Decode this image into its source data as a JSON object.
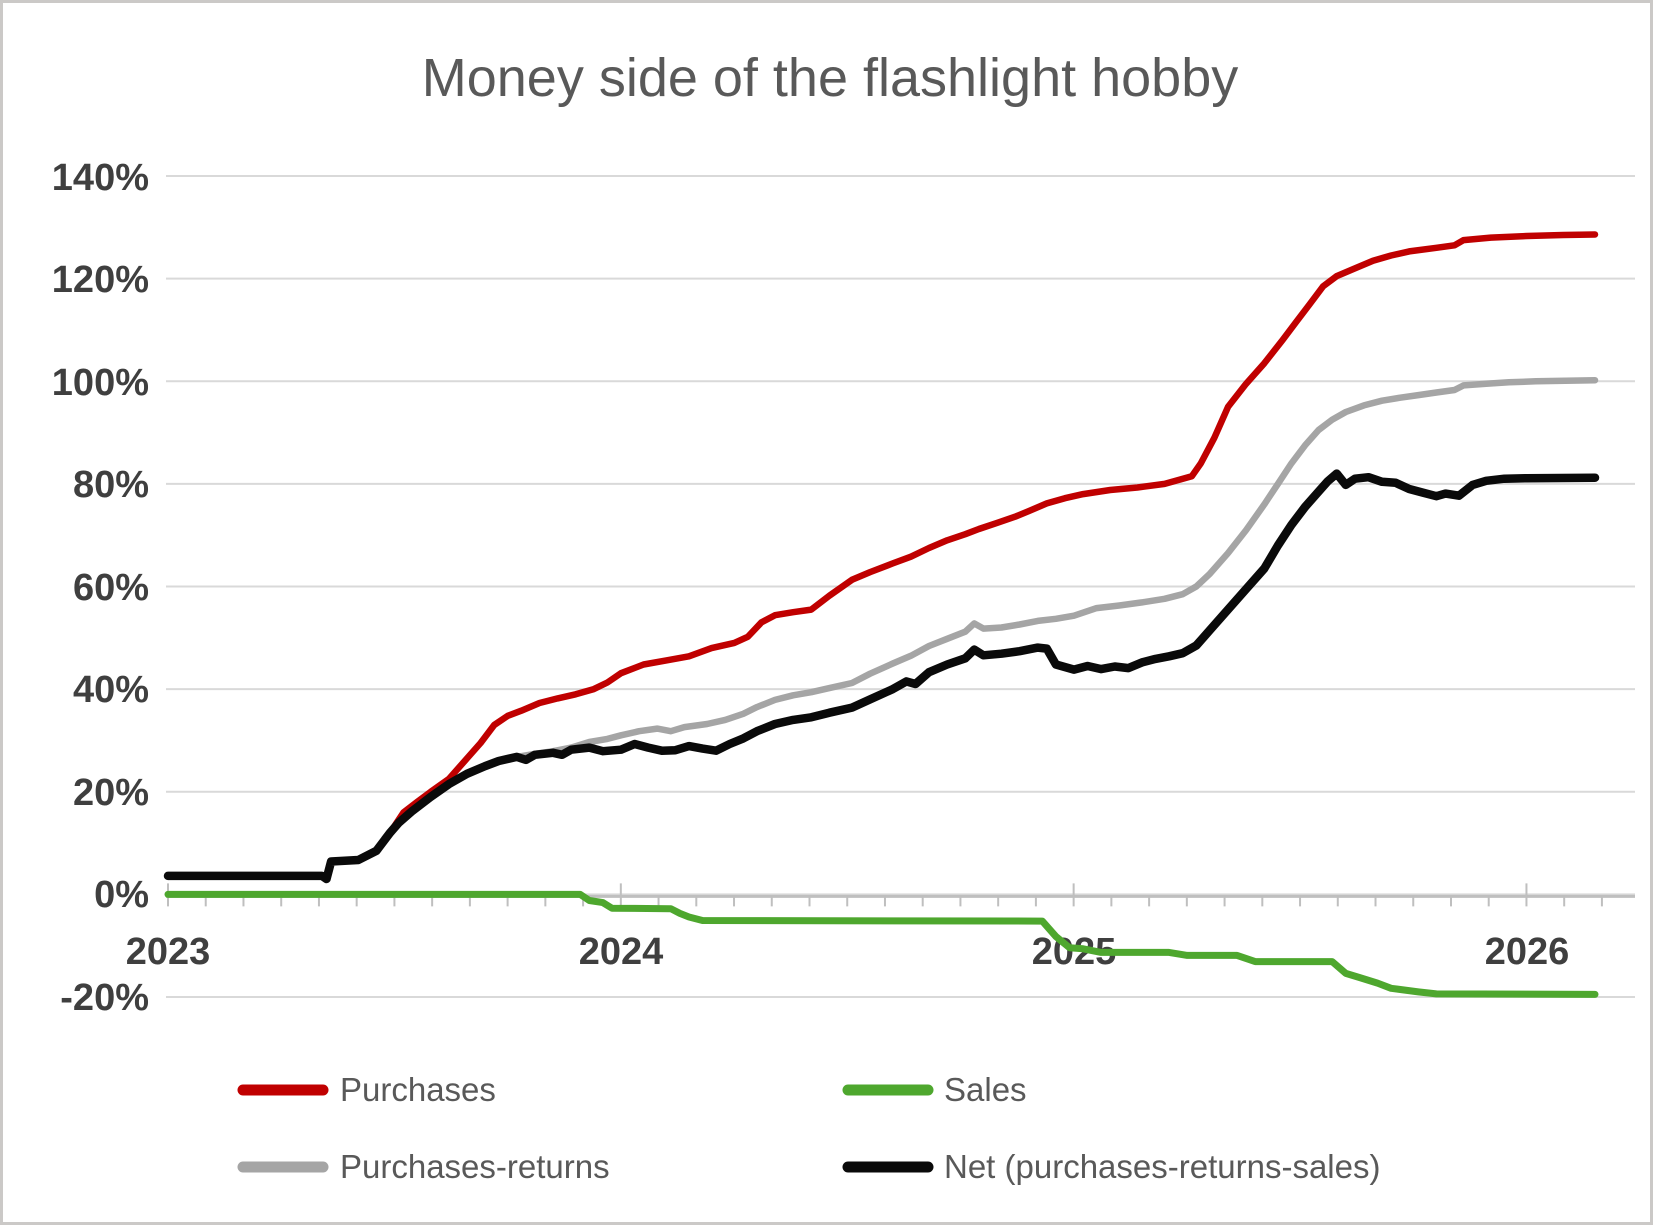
{
  "chart_data": {
    "type": "line",
    "title": "Money side of the flashlight hobby",
    "xlabel": "",
    "ylabel": "",
    "x_axis": {
      "range": [
        2023.0,
        2026.24
      ],
      "tick_labels": [
        "2023",
        "2024",
        "2025",
        "2026"
      ],
      "tick_values": [
        2023,
        2024,
        2025,
        2026
      ],
      "minor_tick_interval_years": 0.0833
    },
    "y_axis": {
      "range": [
        -20,
        140
      ],
      "format": "percent",
      "tick_values": [
        140,
        120,
        100,
        80,
        60,
        40,
        20,
        0,
        -20
      ],
      "tick_labels": [
        "140%",
        "120%",
        "100%",
        "80%",
        "60%",
        "40%",
        "20%",
        "0%",
        "-20%"
      ]
    },
    "grid": "horizontal",
    "legend_position": "bottom",
    "series": [
      {
        "name": "Purchases",
        "color": "#c00000",
        "stroke_width": 6.5,
        "points": [
          [
            2023.0,
            3.6
          ],
          [
            2023.34,
            3.6
          ],
          [
            2023.35,
            3.0
          ],
          [
            2023.36,
            6.4
          ],
          [
            2023.42,
            6.7
          ],
          [
            2023.46,
            8.5
          ],
          [
            2023.49,
            12.0
          ],
          [
            2023.52,
            16.0
          ],
          [
            2023.55,
            18.0
          ],
          [
            2023.58,
            20.0
          ],
          [
            2023.62,
            22.5
          ],
          [
            2023.66,
            26.5
          ],
          [
            2023.69,
            29.5
          ],
          [
            2023.72,
            33.0
          ],
          [
            2023.75,
            34.8
          ],
          [
            2023.78,
            35.8
          ],
          [
            2023.82,
            37.3
          ],
          [
            2023.86,
            38.2
          ],
          [
            2023.9,
            39.0
          ],
          [
            2023.94,
            40.0
          ],
          [
            2023.97,
            41.3
          ],
          [
            2024.0,
            43.1
          ],
          [
            2024.05,
            44.8
          ],
          [
            2024.1,
            45.6
          ],
          [
            2024.15,
            46.4
          ],
          [
            2024.2,
            48.0
          ],
          [
            2024.25,
            49.0
          ],
          [
            2024.28,
            50.2
          ],
          [
            2024.31,
            53.0
          ],
          [
            2024.34,
            54.4
          ],
          [
            2024.38,
            55.0
          ],
          [
            2024.42,
            55.5
          ],
          [
            2024.46,
            58.2
          ],
          [
            2024.51,
            61.3
          ],
          [
            2024.55,
            62.8
          ],
          [
            2024.6,
            64.5
          ],
          [
            2024.64,
            65.8
          ],
          [
            2024.68,
            67.5
          ],
          [
            2024.72,
            69.0
          ],
          [
            2024.76,
            70.2
          ],
          [
            2024.79,
            71.2
          ],
          [
            2024.83,
            72.4
          ],
          [
            2024.87,
            73.6
          ],
          [
            2024.9,
            74.7
          ],
          [
            2024.94,
            76.2
          ],
          [
            2024.98,
            77.2
          ],
          [
            2025.02,
            78.0
          ],
          [
            2025.08,
            78.8
          ],
          [
            2025.14,
            79.3
          ],
          [
            2025.2,
            80.0
          ],
          [
            2025.26,
            81.5
          ],
          [
            2025.28,
            84.0
          ],
          [
            2025.31,
            89.0
          ],
          [
            2025.34,
            95.0
          ],
          [
            2025.38,
            99.5
          ],
          [
            2025.42,
            103.5
          ],
          [
            2025.46,
            108.0
          ],
          [
            2025.49,
            111.5
          ],
          [
            2025.52,
            115.0
          ],
          [
            2025.55,
            118.5
          ],
          [
            2025.58,
            120.5
          ],
          [
            2025.62,
            122.0
          ],
          [
            2025.66,
            123.5
          ],
          [
            2025.7,
            124.5
          ],
          [
            2025.74,
            125.3
          ],
          [
            2025.8,
            126.0
          ],
          [
            2025.84,
            126.5
          ],
          [
            2025.86,
            127.5
          ],
          [
            2025.92,
            128.0
          ],
          [
            2026.0,
            128.3
          ],
          [
            2026.08,
            128.5
          ],
          [
            2026.15,
            128.6
          ]
        ]
      },
      {
        "name": "Sales",
        "color": "#4ea72e",
        "stroke_width": 7,
        "points": [
          [
            2023.0,
            0
          ],
          [
            2023.91,
            0
          ],
          [
            2023.93,
            -1.2
          ],
          [
            2023.96,
            -1.6
          ],
          [
            2023.98,
            -2.7
          ],
          [
            2024.11,
            -2.8
          ],
          [
            2024.13,
            -3.7
          ],
          [
            2024.15,
            -4.4
          ],
          [
            2024.18,
            -5.1
          ],
          [
            2024.93,
            -5.2
          ],
          [
            2024.96,
            -8.2
          ],
          [
            2024.99,
            -10.4
          ],
          [
            2025.02,
            -10.6
          ],
          [
            2025.06,
            -11.3
          ],
          [
            2025.21,
            -11.3
          ],
          [
            2025.25,
            -11.9
          ],
          [
            2025.36,
            -11.9
          ],
          [
            2025.4,
            -13.1
          ],
          [
            2025.57,
            -13.1
          ],
          [
            2025.6,
            -15.4
          ],
          [
            2025.63,
            -16.2
          ],
          [
            2025.67,
            -17.3
          ],
          [
            2025.7,
            -18.3
          ],
          [
            2025.76,
            -19.0
          ],
          [
            2025.8,
            -19.4
          ],
          [
            2026.15,
            -19.5
          ]
        ]
      },
      {
        "name": "Purchases-returns",
        "color": "#a5a5a5",
        "stroke_width": 6.5,
        "points": [
          [
            2023.0,
            3.6
          ],
          [
            2023.34,
            3.6
          ],
          [
            2023.35,
            3.0
          ],
          [
            2023.36,
            6.4
          ],
          [
            2023.42,
            6.7
          ],
          [
            2023.46,
            8.5
          ],
          [
            2023.49,
            12.0
          ],
          [
            2023.51,
            14.0
          ],
          [
            2023.54,
            16.3
          ],
          [
            2023.58,
            19.0
          ],
          [
            2023.62,
            21.5
          ],
          [
            2023.66,
            23.5
          ],
          [
            2023.7,
            25.0
          ],
          [
            2023.73,
            26.0
          ],
          [
            2023.77,
            26.8
          ],
          [
            2023.81,
            27.4
          ],
          [
            2023.85,
            27.9
          ],
          [
            2023.89,
            28.6
          ],
          [
            2023.93,
            29.7
          ],
          [
            2023.97,
            30.3
          ],
          [
            2024.0,
            31.0
          ],
          [
            2024.04,
            31.8
          ],
          [
            2024.08,
            32.3
          ],
          [
            2024.11,
            31.8
          ],
          [
            2024.14,
            32.6
          ],
          [
            2024.19,
            33.2
          ],
          [
            2024.23,
            34.0
          ],
          [
            2024.27,
            35.2
          ],
          [
            2024.3,
            36.5
          ],
          [
            2024.34,
            37.9
          ],
          [
            2024.38,
            38.8
          ],
          [
            2024.42,
            39.4
          ],
          [
            2024.46,
            40.2
          ],
          [
            2024.51,
            41.2
          ],
          [
            2024.55,
            43.0
          ],
          [
            2024.6,
            45.0
          ],
          [
            2024.64,
            46.5
          ],
          [
            2024.68,
            48.4
          ],
          [
            2024.72,
            49.8
          ],
          [
            2024.76,
            51.2
          ],
          [
            2024.78,
            52.8
          ],
          [
            2024.8,
            51.8
          ],
          [
            2024.84,
            52.0
          ],
          [
            2024.88,
            52.6
          ],
          [
            2024.92,
            53.3
          ],
          [
            2024.96,
            53.7
          ],
          [
            2025.0,
            54.3
          ],
          [
            2025.05,
            55.8
          ],
          [
            2025.1,
            56.3
          ],
          [
            2025.15,
            56.9
          ],
          [
            2025.2,
            57.6
          ],
          [
            2025.24,
            58.5
          ],
          [
            2025.27,
            60.0
          ],
          [
            2025.3,
            62.5
          ],
          [
            2025.34,
            66.5
          ],
          [
            2025.38,
            71.0
          ],
          [
            2025.42,
            76.0
          ],
          [
            2025.45,
            80.0
          ],
          [
            2025.48,
            84.0
          ],
          [
            2025.51,
            87.5
          ],
          [
            2025.54,
            90.5
          ],
          [
            2025.57,
            92.5
          ],
          [
            2025.6,
            94.0
          ],
          [
            2025.64,
            95.3
          ],
          [
            2025.68,
            96.2
          ],
          [
            2025.72,
            96.8
          ],
          [
            2025.76,
            97.3
          ],
          [
            2025.8,
            97.8
          ],
          [
            2025.84,
            98.3
          ],
          [
            2025.86,
            99.2
          ],
          [
            2025.91,
            99.5
          ],
          [
            2025.96,
            99.8
          ],
          [
            2026.02,
            100.0
          ],
          [
            2026.15,
            100.2
          ]
        ]
      },
      {
        "name": "Net (purchases-returns-sales)",
        "color": "#0a0a0a",
        "stroke_width": 8.5,
        "points": [
          [
            2023.0,
            3.6
          ],
          [
            2023.34,
            3.6
          ],
          [
            2023.35,
            3.0
          ],
          [
            2023.36,
            6.4
          ],
          [
            2023.42,
            6.7
          ],
          [
            2023.46,
            8.5
          ],
          [
            2023.49,
            12.0
          ],
          [
            2023.51,
            14.0
          ],
          [
            2023.54,
            16.3
          ],
          [
            2023.58,
            19.0
          ],
          [
            2023.62,
            21.5
          ],
          [
            2023.66,
            23.5
          ],
          [
            2023.7,
            25.0
          ],
          [
            2023.73,
            26.0
          ],
          [
            2023.77,
            26.8
          ],
          [
            2023.79,
            26.2
          ],
          [
            2023.81,
            27.2
          ],
          [
            2023.85,
            27.6
          ],
          [
            2023.87,
            27.2
          ],
          [
            2023.89,
            28.2
          ],
          [
            2023.93,
            28.6
          ],
          [
            2023.96,
            27.9
          ],
          [
            2024.0,
            28.2
          ],
          [
            2024.03,
            29.3
          ],
          [
            2024.06,
            28.6
          ],
          [
            2024.09,
            28.0
          ],
          [
            2024.12,
            28.1
          ],
          [
            2024.15,
            28.9
          ],
          [
            2024.18,
            28.4
          ],
          [
            2024.21,
            28.0
          ],
          [
            2024.24,
            29.3
          ],
          [
            2024.27,
            30.4
          ],
          [
            2024.3,
            31.8
          ],
          [
            2024.34,
            33.2
          ],
          [
            2024.38,
            34.0
          ],
          [
            2024.42,
            34.5
          ],
          [
            2024.46,
            35.4
          ],
          [
            2024.51,
            36.4
          ],
          [
            2024.55,
            38.0
          ],
          [
            2024.6,
            40.0
          ],
          [
            2024.63,
            41.5
          ],
          [
            2024.65,
            41.0
          ],
          [
            2024.68,
            43.3
          ],
          [
            2024.72,
            44.8
          ],
          [
            2024.76,
            46.0
          ],
          [
            2024.78,
            47.7
          ],
          [
            2024.8,
            46.6
          ],
          [
            2024.84,
            46.9
          ],
          [
            2024.88,
            47.4
          ],
          [
            2024.92,
            48.1
          ],
          [
            2024.94,
            47.9
          ],
          [
            2024.96,
            44.8
          ],
          [
            2025.0,
            43.8
          ],
          [
            2025.03,
            44.5
          ],
          [
            2025.06,
            43.9
          ],
          [
            2025.09,
            44.4
          ],
          [
            2025.12,
            44.1
          ],
          [
            2025.15,
            45.2
          ],
          [
            2025.18,
            45.9
          ],
          [
            2025.21,
            46.4
          ],
          [
            2025.24,
            47.0
          ],
          [
            2025.27,
            48.5
          ],
          [
            2025.3,
            51.5
          ],
          [
            2025.34,
            55.5
          ],
          [
            2025.38,
            59.5
          ],
          [
            2025.42,
            63.5
          ],
          [
            2025.45,
            68.0
          ],
          [
            2025.48,
            72.0
          ],
          [
            2025.51,
            75.5
          ],
          [
            2025.54,
            78.5
          ],
          [
            2025.56,
            80.5
          ],
          [
            2025.58,
            82.0
          ],
          [
            2025.6,
            79.8
          ],
          [
            2025.62,
            81.0
          ],
          [
            2025.65,
            81.3
          ],
          [
            2025.68,
            80.4
          ],
          [
            2025.71,
            80.2
          ],
          [
            2025.74,
            79.0
          ],
          [
            2025.77,
            78.3
          ],
          [
            2025.8,
            77.6
          ],
          [
            2025.82,
            78.1
          ],
          [
            2025.85,
            77.7
          ],
          [
            2025.88,
            79.8
          ],
          [
            2025.91,
            80.6
          ],
          [
            2025.95,
            81.0
          ],
          [
            2026.0,
            81.1
          ],
          [
            2026.15,
            81.2
          ]
        ]
      }
    ],
    "style": {
      "gridline_color": "#d9d9d9",
      "axis_line_color": "#bfbfbf",
      "tick_color": "#bfbfbf",
      "axis_label_color": "#3f3f3f",
      "title_color": "#595959",
      "legend_text_color": "#595959",
      "background": "#ffffff",
      "frame_border_color": "#cbc9c7"
    }
  }
}
